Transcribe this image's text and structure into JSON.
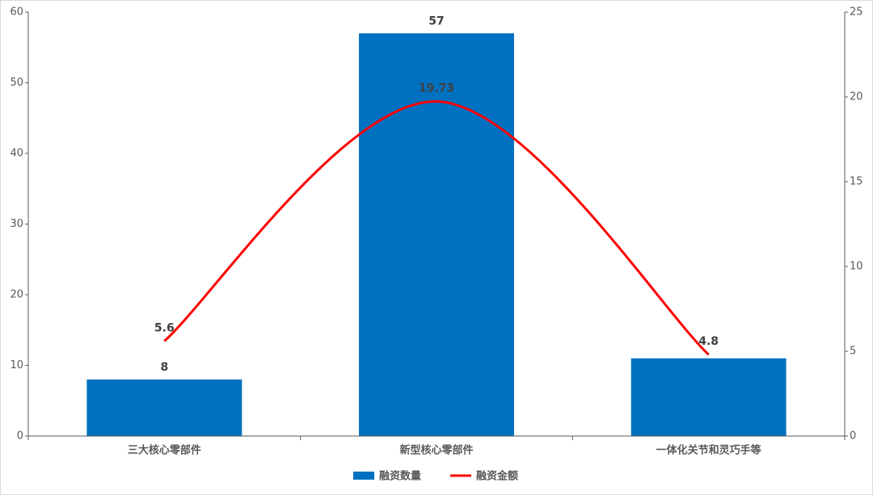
{
  "chart_data": {
    "type": "bar-line",
    "categories": [
      "三大核心零部件",
      "新型核心零部件",
      "一体化关节和灵巧手等"
    ],
    "series": [
      {
        "name": "融资数量",
        "type": "bar",
        "color": "#0070c0",
        "values": [
          8,
          57,
          11
        ],
        "value_labels": [
          "8",
          "57",
          null
        ]
      },
      {
        "name": "融资金额",
        "type": "line",
        "axis": "y2",
        "color": "#ff0000",
        "values": [
          5.6,
          19.73,
          4.8
        ]
      }
    ],
    "ylim": [
      0,
      60
    ],
    "yticks": [
      0,
      10,
      20,
      30,
      40,
      50,
      60
    ],
    "y2lim": [
      0,
      25
    ],
    "y2ticks": [
      0,
      5,
      10,
      15,
      20,
      25
    ],
    "legend": "bottom"
  }
}
